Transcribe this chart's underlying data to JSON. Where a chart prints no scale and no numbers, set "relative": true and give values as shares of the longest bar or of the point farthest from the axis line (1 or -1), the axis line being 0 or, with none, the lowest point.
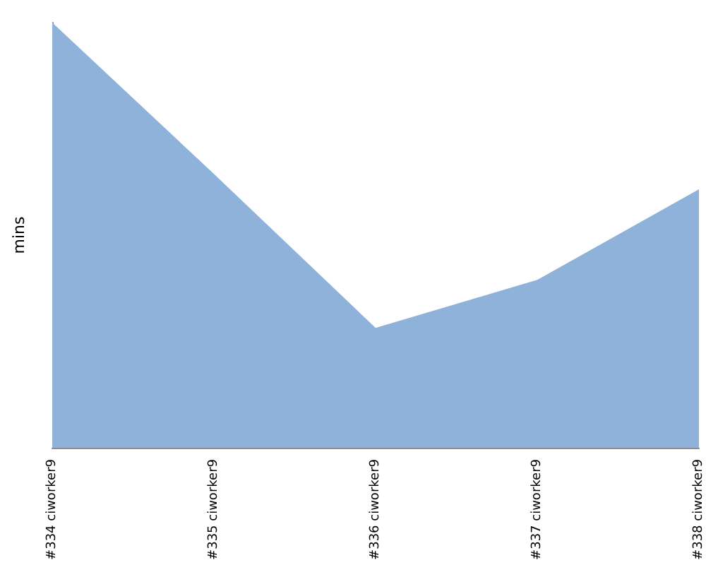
{
  "chart_data": {
    "type": "area",
    "ylabel": "mins",
    "relative": true,
    "categories": [
      "#334 ciworker9",
      "#335 ciworker9",
      "#336 ciworker9",
      "#337 ciworker9",
      "#338 ciworker9"
    ],
    "series": [
      {
        "color": "#8fb2da",
        "values": [
          1,
          0.644,
          0.282,
          0.395,
          0.608
        ]
      }
    ],
    "grid": false
  }
}
